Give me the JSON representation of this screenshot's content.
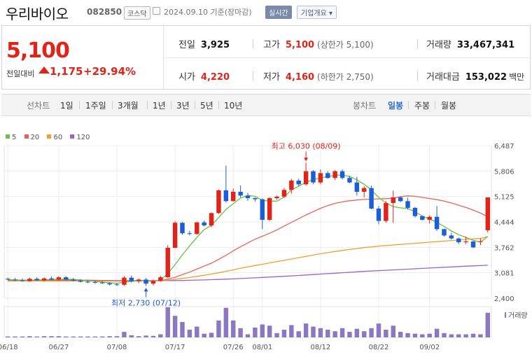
{
  "header": {
    "stock_name": "우리바이오",
    "stock_code": "082850",
    "market": "코스닥",
    "date_text": "2024.09.10  기준(장마감)",
    "realtime_label": "실시간",
    "overview_label": "기업개요"
  },
  "quote": {
    "price": "5,100",
    "change_label": "전일대비",
    "change": "1,175",
    "change_pct": "+29.94%",
    "prev_close_label": "전일",
    "prev_close": "3,925",
    "high_label": "고가",
    "high": "5,100",
    "upper_limit": "(상한가 5,100)",
    "volume_label": "거래량",
    "volume": "33,467,341",
    "open_label": "시가",
    "open": "4,220",
    "low_label": "저가",
    "low": "4,160",
    "lower_limit": "(하한가 2,750)",
    "amount_label": "거래대금",
    "amount": "153,022",
    "amount_unit": "백만"
  },
  "tabs": {
    "line_label": "선차트",
    "line_periods": [
      "1일",
      "1주일",
      "3개월",
      "1년",
      "3년",
      "5년",
      "10년"
    ],
    "candle_label": "봉차트",
    "candle_periods": [
      "일봉",
      "주봉",
      "월봉"
    ],
    "active_candle": "일봉"
  },
  "colors": {
    "up": "#e2231a",
    "down": "#1b5fd6",
    "ma5": "#6bc048",
    "ma20": "#e8645a",
    "ma60": "#f0a030",
    "ma120": "#9a64c8",
    "volume": "#8c78c0"
  },
  "chart_data": {
    "type": "candlestick",
    "legend": [
      {
        "name": "5",
        "color": "#6bc048"
      },
      {
        "name": "20",
        "color": "#e8645a"
      },
      {
        "name": "60",
        "color": "#f0a030"
      },
      {
        "name": "120",
        "color": "#9a64c8"
      }
    ],
    "y_ticks": [
      "6,487",
      "5,806",
      "5,125",
      "4,444",
      "3,762",
      "3,081",
      "2,400"
    ],
    "y_range": [
      2400,
      6487
    ],
    "x_tick_labels": [
      "06/18",
      "06/27",
      "07/08",
      "07/17",
      "07/26",
      "08/01",
      "08/12",
      "08/22",
      "09/02"
    ],
    "x_tick_index": [
      0,
      7,
      15,
      23,
      31,
      35,
      43,
      51,
      58
    ],
    "volume_label": "거래량",
    "max_annotation": "최고 6,030 (08/09)",
    "max_index": 41,
    "max_value": 6030,
    "min_annotation": "최저 2,730 (07/12)",
    "min_index": 19,
    "min_value": 2730,
    "candles": [
      {
        "o": 2920,
        "h": 2950,
        "l": 2880,
        "c": 2900,
        "v": 0.03
      },
      {
        "o": 2900,
        "h": 2940,
        "l": 2860,
        "c": 2880,
        "v": 0.03
      },
      {
        "o": 2880,
        "h": 2930,
        "l": 2840,
        "c": 2860,
        "v": 0.03
      },
      {
        "o": 2860,
        "h": 2950,
        "l": 2840,
        "c": 2920,
        "v": 0.04
      },
      {
        "o": 2920,
        "h": 2960,
        "l": 2870,
        "c": 2880,
        "v": 0.03
      },
      {
        "o": 2880,
        "h": 2960,
        "l": 2850,
        "c": 2930,
        "v": 0.04
      },
      {
        "o": 2930,
        "h": 2980,
        "l": 2880,
        "c": 2900,
        "v": 0.04
      },
      {
        "o": 2900,
        "h": 2990,
        "l": 2870,
        "c": 2960,
        "v": 0.04
      },
      {
        "o": 2960,
        "h": 2990,
        "l": 2880,
        "c": 2900,
        "v": 0.03
      },
      {
        "o": 2900,
        "h": 2940,
        "l": 2850,
        "c": 2870,
        "v": 0.03
      },
      {
        "o": 2870,
        "h": 2910,
        "l": 2820,
        "c": 2840,
        "v": 0.03
      },
      {
        "o": 2840,
        "h": 2880,
        "l": 2800,
        "c": 2830,
        "v": 0.03
      },
      {
        "o": 2830,
        "h": 2870,
        "l": 2790,
        "c": 2820,
        "v": 0.03
      },
      {
        "o": 2820,
        "h": 2860,
        "l": 2780,
        "c": 2800,
        "v": 0.03
      },
      {
        "o": 2800,
        "h": 2830,
        "l": 2740,
        "c": 2770,
        "v": 0.04
      },
      {
        "o": 2770,
        "h": 2810,
        "l": 2730,
        "c": 2760,
        "v": 0.04
      },
      {
        "o": 2760,
        "h": 2990,
        "l": 2730,
        "c": 2950,
        "v": 0.18
      },
      {
        "o": 2950,
        "h": 3010,
        "l": 2820,
        "c": 2860,
        "v": 0.07
      },
      {
        "o": 2860,
        "h": 2930,
        "l": 2800,
        "c": 2900,
        "v": 0.04
      },
      {
        "o": 2900,
        "h": 2940,
        "l": 2730,
        "c": 2790,
        "v": 0.06
      },
      {
        "o": 2790,
        "h": 2900,
        "l": 2740,
        "c": 2860,
        "v": 0.05
      },
      {
        "o": 2860,
        "h": 3000,
        "l": 2840,
        "c": 2960,
        "v": 0.1
      },
      {
        "o": 2960,
        "h": 3820,
        "l": 2950,
        "c": 3750,
        "v": 0.98
      },
      {
        "o": 3750,
        "h": 4460,
        "l": 3740,
        "c": 4420,
        "v": 0.7
      },
      {
        "o": 4420,
        "h": 4440,
        "l": 4100,
        "c": 4140,
        "v": 0.5
      },
      {
        "o": 4140,
        "h": 4200,
        "l": 4080,
        "c": 4120,
        "v": 0.25
      },
      {
        "o": 4120,
        "h": 4450,
        "l": 4100,
        "c": 4430,
        "v": 0.35
      },
      {
        "o": 4430,
        "h": 4480,
        "l": 4320,
        "c": 4350,
        "v": 0.12
      },
      {
        "o": 4350,
        "h": 4700,
        "l": 4300,
        "c": 4680,
        "v": 0.15
      },
      {
        "o": 4680,
        "h": 5310,
        "l": 4660,
        "c": 5290,
        "v": 0.55
      },
      {
        "o": 5290,
        "h": 5950,
        "l": 4960,
        "c": 5000,
        "v": 0.96
      },
      {
        "o": 5000,
        "h": 5340,
        "l": 4990,
        "c": 5250,
        "v": 0.55
      },
      {
        "o": 5250,
        "h": 5420,
        "l": 5100,
        "c": 5150,
        "v": 0.3
      },
      {
        "o": 5150,
        "h": 5220,
        "l": 5010,
        "c": 5080,
        "v": 0.1
      },
      {
        "o": 5080,
        "h": 5100,
        "l": 4980,
        "c": 5050,
        "v": 0.32
      },
      {
        "o": 5050,
        "h": 5070,
        "l": 4250,
        "c": 4500,
        "v": 0.42
      },
      {
        "o": 4500,
        "h": 5100,
        "l": 4470,
        "c": 5080,
        "v": 0.38
      },
      {
        "o": 5080,
        "h": 5150,
        "l": 5040,
        "c": 5120,
        "v": 0.14
      },
      {
        "o": 5120,
        "h": 5350,
        "l": 5080,
        "c": 5300,
        "v": 0.25
      },
      {
        "o": 5300,
        "h": 5600,
        "l": 5200,
        "c": 5550,
        "v": 0.4
      },
      {
        "o": 5550,
        "h": 5600,
        "l": 5400,
        "c": 5450,
        "v": 0.2
      },
      {
        "o": 5450,
        "h": 6030,
        "l": 5420,
        "c": 5800,
        "v": 0.45
      },
      {
        "o": 5800,
        "h": 5830,
        "l": 5450,
        "c": 5500,
        "v": 0.35
      },
      {
        "o": 5500,
        "h": 5850,
        "l": 5450,
        "c": 5750,
        "v": 0.3
      },
      {
        "o": 5750,
        "h": 5800,
        "l": 5600,
        "c": 5620,
        "v": 0.25
      },
      {
        "o": 5620,
        "h": 5830,
        "l": 5560,
        "c": 5800,
        "v": 0.2
      },
      {
        "o": 5800,
        "h": 5850,
        "l": 5580,
        "c": 5620,
        "v": 0.3
      },
      {
        "o": 5620,
        "h": 5680,
        "l": 5480,
        "c": 5500,
        "v": 0.18
      },
      {
        "o": 5500,
        "h": 5650,
        "l": 5150,
        "c": 5250,
        "v": 0.28
      },
      {
        "o": 5250,
        "h": 5400,
        "l": 5100,
        "c": 5350,
        "v": 0.2
      },
      {
        "o": 5350,
        "h": 5420,
        "l": 4780,
        "c": 4800,
        "v": 0.3
      },
      {
        "o": 4800,
        "h": 4870,
        "l": 4380,
        "c": 4470,
        "v": 0.45
      },
      {
        "o": 4470,
        "h": 5000,
        "l": 4420,
        "c": 4950,
        "v": 0.25
      },
      {
        "o": 4950,
        "h": 5280,
        "l": 4420,
        "c": 5100,
        "v": 0.38
      },
      {
        "o": 5100,
        "h": 5130,
        "l": 4970,
        "c": 5000,
        "v": 0.18
      },
      {
        "o": 5000,
        "h": 5090,
        "l": 4780,
        "c": 4820,
        "v": 0.14
      },
      {
        "o": 4820,
        "h": 4840,
        "l": 4560,
        "c": 4600,
        "v": 0.12
      },
      {
        "o": 4600,
        "h": 4600,
        "l": 4480,
        "c": 4500,
        "v": 0.1
      },
      {
        "o": 4500,
        "h": 4620,
        "l": 4400,
        "c": 4580,
        "v": 0.12
      },
      {
        "o": 4580,
        "h": 4870,
        "l": 4200,
        "c": 4250,
        "v": 0.28
      },
      {
        "o": 4250,
        "h": 4260,
        "l": 4050,
        "c": 4080,
        "v": 0.14
      },
      {
        "o": 4080,
        "h": 4150,
        "l": 3970,
        "c": 4000,
        "v": 0.1
      },
      {
        "o": 4000,
        "h": 4020,
        "l": 3850,
        "c": 3900,
        "v": 0.1
      },
      {
        "o": 3900,
        "h": 4050,
        "l": 3850,
        "c": 3920,
        "v": 0.1
      },
      {
        "o": 3920,
        "h": 3930,
        "l": 3740,
        "c": 3760,
        "v": 0.12
      },
      {
        "o": 3925,
        "h": 4000,
        "l": 3820,
        "c": 3925,
        "v": 0.1
      },
      {
        "o": 4220,
        "h": 5100,
        "l": 4160,
        "c": 5100,
        "v": 0.8
      }
    ],
    "ma5": [
      2895,
      2890,
      2885,
      2885,
      2888,
      2892,
      2900,
      2905,
      2910,
      2905,
      2890,
      2870,
      2850,
      2830,
      2815,
      2800,
      2830,
      2850,
      2865,
      2860,
      2850,
      2880,
      3060,
      3300,
      3560,
      3800,
      4030,
      4240,
      4350,
      4560,
      4780,
      4930,
      5080,
      5150,
      5130,
      5020,
      5000,
      5000,
      5110,
      5300,
      5400,
      5500,
      5580,
      5620,
      5660,
      5690,
      5700,
      5660,
      5570,
      5450,
      5300,
      5100,
      4950,
      4850,
      4820,
      4800,
      4720,
      4600,
      4520,
      4430,
      4320,
      4200,
      4100,
      4030,
      3950,
      3900,
      4050
    ],
    "ma20": [
      2880,
      2880,
      2880,
      2880,
      2880,
      2882,
      2884,
      2886,
      2888,
      2888,
      2886,
      2884,
      2880,
      2876,
      2872,
      2868,
      2866,
      2866,
      2866,
      2866,
      2866,
      2870,
      2910,
      2960,
      3030,
      3100,
      3180,
      3260,
      3340,
      3440,
      3550,
      3670,
      3780,
      3880,
      3980,
      4060,
      4140,
      4230,
      4330,
      4430,
      4530,
      4630,
      4720,
      4810,
      4880,
      4940,
      4980,
      5010,
      5030,
      5045,
      5055,
      5060,
      5065,
      5080,
      5120,
      5140,
      5130,
      5100,
      5070,
      5040,
      5000,
      4950,
      4890,
      4830,
      4760,
      4680,
      4580
    ],
    "ma60": [
      2860,
      2860,
      2860,
      2860,
      2860,
      2860,
      2860,
      2860,
      2860,
      2860,
      2860,
      2860,
      2860,
      2860,
      2860,
      2860,
      2860,
      2860,
      2860,
      2860,
      2862,
      2868,
      2885,
      2905,
      2930,
      2955,
      2985,
      3015,
      3045,
      3080,
      3120,
      3160,
      3200,
      3240,
      3275,
      3310,
      3345,
      3380,
      3415,
      3450,
      3485,
      3520,
      3555,
      3590,
      3620,
      3650,
      3680,
      3705,
      3730,
      3755,
      3775,
      3795,
      3810,
      3825,
      3840,
      3855,
      3870,
      3885,
      3900,
      3915,
      3930,
      3945,
      3960,
      3975,
      3990,
      4000,
      4050
    ],
    "ma120": [
      2870,
      2870,
      2870,
      2870,
      2870,
      2870,
      2870,
      2870,
      2870,
      2870,
      2870,
      2870,
      2870,
      2870,
      2870,
      2870,
      2870,
      2870,
      2870,
      2870,
      2870,
      2870,
      2870,
      2872,
      2875,
      2880,
      2885,
      2890,
      2896,
      2902,
      2910,
      2918,
      2926,
      2936,
      2946,
      2956,
      2966,
      2976,
      2986,
      2998,
      3010,
      3022,
      3034,
      3046,
      3058,
      3070,
      3082,
      3094,
      3106,
      3118,
      3128,
      3138,
      3148,
      3158,
      3168,
      3178,
      3188,
      3198,
      3208,
      3218,
      3228,
      3238,
      3248,
      3258,
      3266,
      3274,
      3282
    ]
  }
}
